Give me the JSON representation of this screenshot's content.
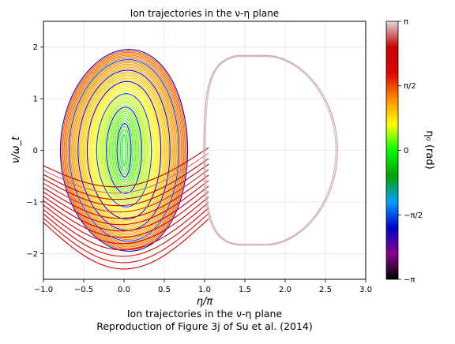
{
  "chart_data": {
    "type": "line",
    "title": "Ion trajectories in the ν-η plane",
    "xlabel": "η/π",
    "ylabel": "ν/ω_t",
    "xlim": [
      -1.0,
      3.0
    ],
    "ylim": [
      -2.5,
      2.5
    ],
    "xticks": [
      -1.0,
      -0.5,
      0.0,
      0.5,
      1.0,
      1.5,
      2.0,
      2.5,
      3.0
    ],
    "xtick_labels": [
      "−1.0",
      "−0.5",
      "0.0",
      "0.5",
      "1.0",
      "1.5",
      "2.0",
      "2.5",
      "3.0"
    ],
    "yticks": [
      -2,
      -1,
      0,
      1,
      2
    ],
    "ytick_labels": [
      "−2",
      "−1",
      "0",
      "1",
      "2"
    ],
    "grid": true,
    "colorbar": {
      "label": "η₀ (rad)",
      "range": [
        -3.14159,
        3.14159
      ],
      "ticks": [
        -3.14159,
        -1.5708,
        0,
        1.5708,
        3.14159
      ],
      "tick_labels": [
        "−π",
        "−π/2",
        "0",
        "π/2",
        "π"
      ],
      "colors": [
        "#000000",
        "#8b008b",
        "#0000cd",
        "#00a0ff",
        "#00a000",
        "#00ff00",
        "#ffff00",
        "#ff8c00",
        "#e00000",
        "#c80000",
        "#dcdcdc"
      ]
    },
    "series": [
      {
        "name": "trapped orbits (closed, centered at η/π = 0)",
        "center": [
          0,
          0
        ],
        "amplitude_range": [
          0.02,
          0.79
        ],
        "nu_max_range": [
          0.3,
          1.95
        ]
      },
      {
        "name": "passing orbits (η/π < 0, ν < 0 branch)",
        "nu_at_eta_minus1": [
          -1.4,
          -0.3
        ]
      },
      {
        "name": "separatrix lobe centered at η/π = 2",
        "eta_range": [
          1.0,
          2.63
        ],
        "nu_peak": 1.82,
        "nu_min": -1.85
      }
    ],
    "caption_line1": "Ion trajectories in the ν-η plane",
    "caption_line2": "Reproduction of Figure 3j of Su et al. (2014)"
  }
}
